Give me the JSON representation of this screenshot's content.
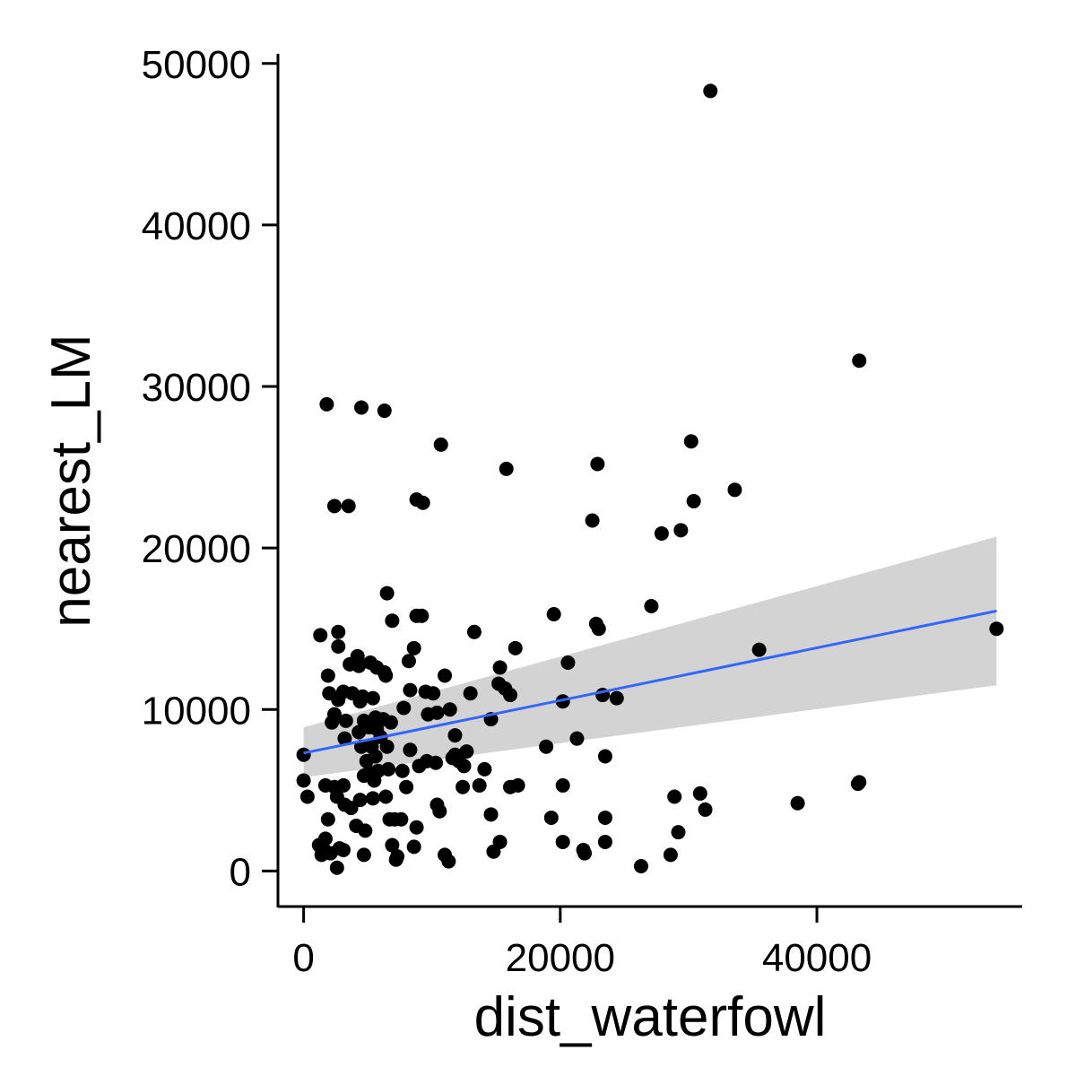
{
  "chart_data": {
    "type": "scatter",
    "title": "",
    "xlabel": "dist_waterfowl",
    "ylabel": "nearest_LM",
    "xlim": [
      -2000,
      56000
    ],
    "ylim": [
      -2200,
      50600
    ],
    "x_ticks": [
      0,
      20000,
      40000
    ],
    "y_ticks": [
      0,
      10000,
      20000,
      30000,
      40000,
      50000
    ],
    "x_tick_labels": [
      "0",
      "20000",
      "40000"
    ],
    "y_tick_labels": [
      "0",
      "10000",
      "20000",
      "30000",
      "40000",
      "50000"
    ],
    "grid": false,
    "legend": "none",
    "points_color": "#000000",
    "trend_color": "#3366FF",
    "ribbon_color": "#D3D3D3",
    "trend": {
      "method": "linear",
      "x": [
        0,
        54000
      ],
      "y": [
        7300,
        16100
      ],
      "ci_lower": [
        5800,
        11500
      ],
      "ci_upper": [
        8900,
        20700
      ]
    },
    "points": [
      [
        31700,
        48300
      ],
      [
        43300,
        31600
      ],
      [
        1800,
        28900
      ],
      [
        4500,
        28700
      ],
      [
        6300,
        28500
      ],
      [
        10700,
        26400
      ],
      [
        15800,
        24900
      ],
      [
        22900,
        25200
      ],
      [
        30200,
        26600
      ],
      [
        33600,
        23600
      ],
      [
        2400,
        22600
      ],
      [
        3500,
        22600
      ],
      [
        8800,
        23000
      ],
      [
        9300,
        22800
      ],
      [
        22500,
        21700
      ],
      [
        27900,
        20900
      ],
      [
        29400,
        21100
      ],
      [
        30400,
        22900
      ],
      [
        6500,
        17200
      ],
      [
        8800,
        15800
      ],
      [
        9200,
        15800
      ],
      [
        19500,
        15900
      ],
      [
        22800,
        15300
      ],
      [
        23000,
        15000
      ],
      [
        27100,
        16400
      ],
      [
        54000,
        15000
      ],
      [
        35500,
        13700
      ],
      [
        1300,
        14600
      ],
      [
        2700,
        14800
      ],
      [
        2700,
        13900
      ],
      [
        6900,
        15500
      ],
      [
        8600,
        13800
      ],
      [
        8200,
        13000
      ],
      [
        4200,
        13300
      ],
      [
        3600,
        12800
      ],
      [
        5200,
        12900
      ],
      [
        5700,
        12600
      ],
      [
        6300,
        12300
      ],
      [
        6400,
        12100
      ],
      [
        1900,
        12100
      ],
      [
        4300,
        12700
      ],
      [
        13300,
        14800
      ],
      [
        16500,
        13800
      ],
      [
        15300,
        12600
      ],
      [
        20600,
        12900
      ],
      [
        10100,
        11000
      ],
      [
        11000,
        12100
      ],
      [
        8300,
        11200
      ],
      [
        9500,
        11100
      ],
      [
        15200,
        11600
      ],
      [
        15700,
        11300
      ],
      [
        16100,
        10900
      ],
      [
        13000,
        11000
      ],
      [
        2000,
        11000
      ],
      [
        3100,
        11100
      ],
      [
        3800,
        11000
      ],
      [
        4600,
        10800
      ],
      [
        5400,
        10700
      ],
      [
        2700,
        10600
      ],
      [
        4400,
        10500
      ],
      [
        7800,
        10100
      ],
      [
        9700,
        9700
      ],
      [
        10400,
        9800
      ],
      [
        11400,
        10000
      ],
      [
        20200,
        10500
      ],
      [
        23300,
        10900
      ],
      [
        24400,
        10700
      ],
      [
        14600,
        9400
      ],
      [
        2400,
        9700
      ],
      [
        2200,
        9200
      ],
      [
        3300,
        9300
      ],
      [
        4700,
        9300
      ],
      [
        5600,
        9500
      ],
      [
        6200,
        9400
      ],
      [
        6800,
        9200
      ],
      [
        5100,
        8900
      ],
      [
        5700,
        8800
      ],
      [
        4300,
        8600
      ],
      [
        3200,
        8200
      ],
      [
        6000,
        8300
      ],
      [
        11800,
        8400
      ],
      [
        6500,
        7700
      ],
      [
        8300,
        7500
      ],
      [
        4500,
        7700
      ],
      [
        5300,
        7700
      ],
      [
        11800,
        7200
      ],
      [
        12700,
        7400
      ],
      [
        12100,
        6800
      ],
      [
        9600,
        6800
      ],
      [
        10300,
        6700
      ],
      [
        11600,
        7000
      ],
      [
        14100,
        6300
      ],
      [
        12500,
        6500
      ],
      [
        6600,
        6300
      ],
      [
        5800,
        6200
      ],
      [
        5100,
        6100
      ],
      [
        4700,
        5900
      ],
      [
        5500,
        5600
      ],
      [
        18900,
        7700
      ],
      [
        21300,
        8200
      ],
      [
        23500,
        7100
      ],
      [
        0,
        7200
      ],
      [
        0,
        5600
      ],
      [
        300,
        4600
      ],
      [
        1700,
        5300
      ],
      [
        2400,
        5200
      ],
      [
        3100,
        5300
      ],
      [
        2600,
        4600
      ],
      [
        3200,
        4100
      ],
      [
        3700,
        3900
      ],
      [
        4400,
        4400
      ],
      [
        5400,
        4500
      ],
      [
        6400,
        4600
      ],
      [
        7100,
        3200
      ],
      [
        7600,
        3200
      ],
      [
        6700,
        3200
      ],
      [
        8800,
        2700
      ],
      [
        10600,
        3700
      ],
      [
        10400,
        4100
      ],
      [
        12400,
        5200
      ],
      [
        13700,
        5300
      ],
      [
        14600,
        3500
      ],
      [
        16100,
        5200
      ],
      [
        16700,
        5300
      ],
      [
        20200,
        5300
      ],
      [
        19300,
        3300
      ],
      [
        23500,
        3300
      ],
      [
        28900,
        4600
      ],
      [
        30900,
        4800
      ],
      [
        31300,
        3800
      ],
      [
        38500,
        4200
      ],
      [
        43200,
        5400
      ],
      [
        43300,
        5500
      ],
      [
        1900,
        3200
      ],
      [
        4100,
        2800
      ],
      [
        4800,
        2500
      ],
      [
        1700,
        2000
      ],
      [
        1200,
        1600
      ],
      [
        1600,
        1300
      ],
      [
        2100,
        1100
      ],
      [
        2800,
        1400
      ],
      [
        3100,
        1300
      ],
      [
        1400,
        1000
      ],
      [
        2600,
        200
      ],
      [
        4700,
        1000
      ],
      [
        6900,
        1600
      ],
      [
        7300,
        900
      ],
      [
        7200,
        700
      ],
      [
        8600,
        1500
      ],
      [
        11000,
        1000
      ],
      [
        11300,
        600
      ],
      [
        14800,
        1200
      ],
      [
        15300,
        1800
      ],
      [
        20200,
        1800
      ],
      [
        21800,
        1300
      ],
      [
        21900,
        1100
      ],
      [
        23500,
        1800
      ],
      [
        26300,
        300
      ],
      [
        28600,
        1000
      ],
      [
        29200,
        2400
      ],
      [
        9000,
        6500
      ],
      [
        8000,
        5200
      ],
      [
        7700,
        6200
      ],
      [
        5600,
        7100
      ],
      [
        4900,
        6800
      ]
    ]
  }
}
